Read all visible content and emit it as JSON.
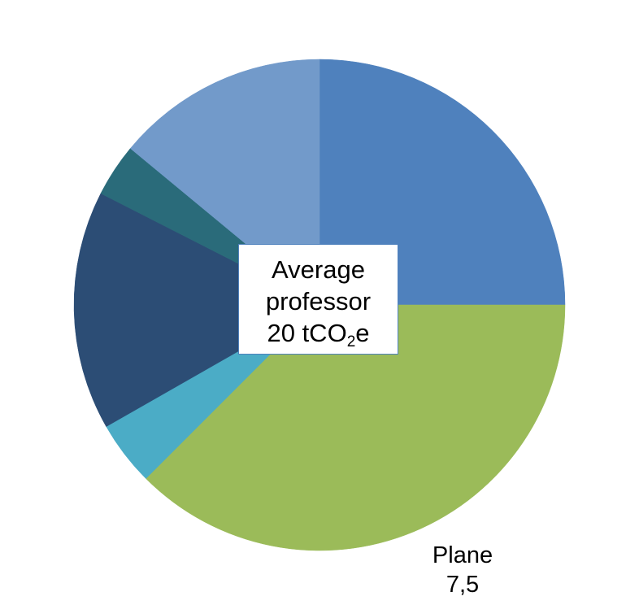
{
  "chart_data": {
    "type": "pie",
    "total_label": {
      "line1": "Average",
      "line2": "professor",
      "line3_prefix": "20 tCO",
      "line3_subscript": "2",
      "line3_suffix": "e"
    },
    "slices": [
      {
        "value": 5.0,
        "color": "#4f81bd",
        "label": "",
        "value_label": ""
      },
      {
        "value": 7.5,
        "color": "#9bbb59",
        "label": "Plane",
        "value_label": "7,5"
      },
      {
        "value": 0.85,
        "color": "#4bacc6",
        "label": "",
        "value_label": ""
      },
      {
        "value": 3.15,
        "color": "#2c4d75",
        "label": "",
        "value_label": ""
      },
      {
        "value": 0.7,
        "color": "#2a6b7a",
        "label": "",
        "value_label": ""
      },
      {
        "value": 2.8,
        "color": "#729aca",
        "label": "",
        "value_label": ""
      }
    ],
    "start": "12 o'clock",
    "direction": "clockwise",
    "legend": "none"
  }
}
